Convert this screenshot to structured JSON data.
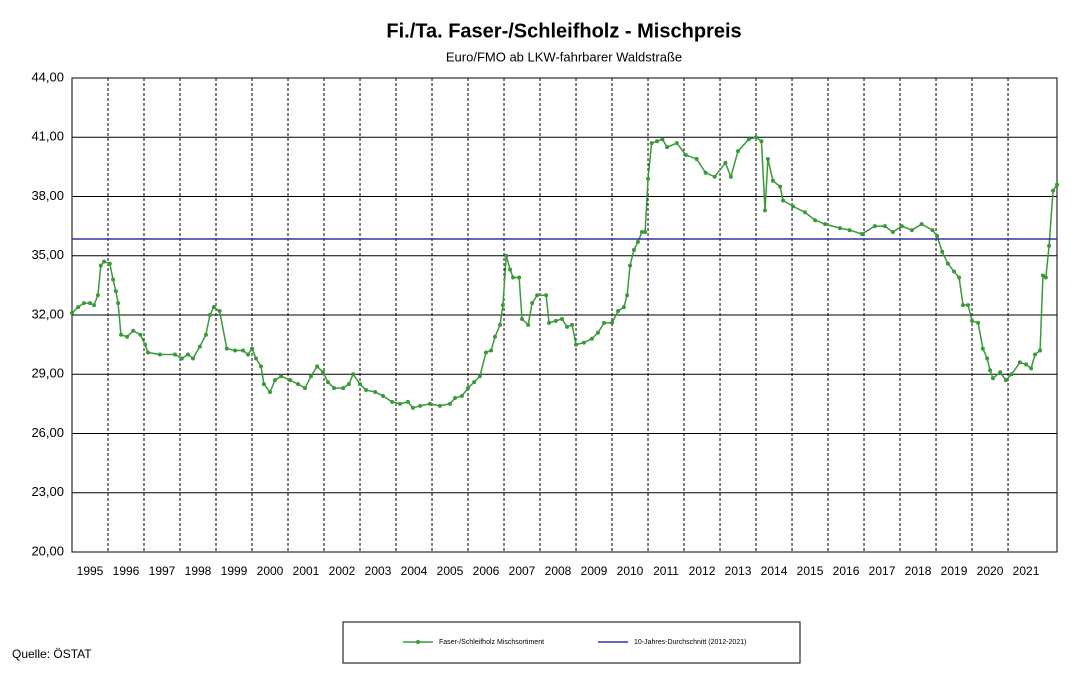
{
  "chart_data": {
    "type": "line",
    "title": "Fi./Ta. Faser-/Schleifholz - Mischpreis",
    "subtitle": "Euro/FMO ab LKW-fahrbarer Waldstraße",
    "source": "Quelle: ÖSTAT",
    "xlim": [
      1995,
      2022.36
    ],
    "ylim": [
      20,
      44
    ],
    "grid": true,
    "legend": "bottom",
    "yticks": [
      {
        "value": 20,
        "label": "20,00"
      },
      {
        "value": 23,
        "label": "23,00"
      },
      {
        "value": 26,
        "label": "26,00"
      },
      {
        "value": 29,
        "label": "29,00"
      },
      {
        "value": 32,
        "label": "32,00"
      },
      {
        "value": 35,
        "label": "35,00"
      },
      {
        "value": 38,
        "label": "38,00"
      },
      {
        "value": 41,
        "label": "41,00"
      },
      {
        "value": 44,
        "label": "44,00"
      }
    ],
    "xticks": [
      1995,
      1996,
      1997,
      1998,
      1999,
      2000,
      2001,
      2002,
      2003,
      2004,
      2005,
      2006,
      2007,
      2008,
      2009,
      2010,
      2011,
      2012,
      2013,
      2014,
      2015,
      2016,
      2017,
      2018,
      2019,
      2020,
      2021
    ],
    "series": [
      {
        "name": "Faser-/Schleifholz Mischsortiment",
        "color": "#3a9a3a",
        "marker": true,
        "x": [
          1995.0,
          1995.17,
          1995.33,
          1995.5,
          1995.61,
          1995.72,
          1995.8,
          1995.89,
          1996.05,
          1996.14,
          1996.22,
          1996.28,
          1996.36,
          1996.53,
          1996.7,
          1996.9,
          1997.03,
          1997.11,
          1997.44,
          1997.86,
          1998.05,
          1998.22,
          1998.36,
          1998.55,
          1998.72,
          1998.83,
          1998.94,
          1999.1,
          1999.3,
          1999.53,
          1999.75,
          1999.89,
          2000.0,
          2000.11,
          2000.25,
          2000.33,
          2000.5,
          2000.64,
          2000.81,
          2001.06,
          2001.28,
          2001.47,
          2001.64,
          2001.81,
          2001.97,
          2002.11,
          2002.28,
          2002.53,
          2002.69,
          2002.81,
          2003.0,
          2003.17,
          2003.42,
          2003.64,
          2003.89,
          2004.11,
          2004.33,
          2004.47,
          2004.67,
          2004.94,
          2005.22,
          2005.5,
          2005.64,
          2005.83,
          2006.0,
          2006.17,
          2006.33,
          2006.5,
          2006.64,
          2006.75,
          2006.89,
          2006.97,
          2007.06,
          2007.17,
          2007.25,
          2007.42,
          2007.5,
          2007.67,
          2007.78,
          2007.92,
          2008.17,
          2008.25,
          2008.44,
          2008.61,
          2008.75,
          2008.89,
          2009.0,
          2009.22,
          2009.44,
          2009.61,
          2009.78,
          2010.0,
          2010.17,
          2010.33,
          2010.42,
          2010.5,
          2010.61,
          2010.72,
          2010.83,
          2010.92,
          2011.0,
          2011.1,
          2011.25,
          2011.4,
          2011.53,
          2011.8,
          2012.05,
          2012.35,
          2012.6,
          2012.85,
          2013.15,
          2013.3,
          2013.5,
          2013.8,
          2014.0,
          2014.15,
          2014.25,
          2014.33,
          2014.47,
          2014.67,
          2014.75,
          2015.03,
          2015.36,
          2015.64,
          2015.92,
          2016.33,
          2016.6,
          2016.94,
          2017.3,
          2017.58,
          2017.8,
          2018.05,
          2018.33,
          2018.6,
          2018.9,
          2019.03,
          2019.17,
          2019.33,
          2019.5,
          2019.64,
          2019.75,
          2019.89,
          2020.0,
          2020.17,
          2020.3,
          2020.42,
          2020.5,
          2020.58,
          2020.78,
          2020.94,
          2021.1,
          2021.33,
          2021.5,
          2021.64,
          2021.75,
          2021.89,
          2021.97,
          2022.05,
          2022.14,
          2022.25,
          2022.36
        ],
        "values": [
          32.1,
          32.4,
          32.6,
          32.6,
          32.5,
          33.0,
          34.5,
          34.7,
          34.6,
          33.8,
          33.2,
          32.6,
          31.0,
          30.9,
          31.2,
          31.0,
          30.5,
          30.1,
          30.0,
          30.0,
          29.8,
          30.0,
          29.8,
          30.4,
          31.0,
          32.0,
          32.4,
          32.2,
          30.3,
          30.2,
          30.2,
          30.0,
          30.3,
          29.8,
          29.4,
          28.5,
          28.1,
          28.7,
          28.9,
          28.7,
          28.5,
          28.3,
          28.9,
          29.4,
          29.1,
          28.6,
          28.3,
          28.3,
          28.5,
          29.0,
          28.5,
          28.2,
          28.1,
          27.9,
          27.6,
          27.5,
          27.6,
          27.3,
          27.4,
          27.5,
          27.4,
          27.5,
          27.8,
          27.9,
          28.3,
          28.6,
          28.9,
          30.1,
          30.2,
          30.9,
          31.5,
          32.5,
          35.0,
          34.3,
          33.9,
          33.9,
          31.8,
          31.5,
          32.6,
          33.0,
          33.0,
          31.6,
          31.7,
          31.8,
          31.4,
          31.5,
          30.5,
          30.6,
          30.8,
          31.1,
          31.6,
          31.6,
          32.2,
          32.4,
          33.0,
          34.5,
          35.3,
          35.7,
          36.2,
          36.2,
          38.9,
          40.7,
          40.8,
          40.9,
          40.5,
          40.7,
          40.1,
          39.9,
          39.2,
          39.0,
          39.7,
          39.0,
          40.3,
          40.9,
          41.0,
          40.8,
          37.3,
          39.9,
          38.8,
          38.5,
          37.8,
          37.5,
          37.2,
          36.8,
          36.6,
          36.4,
          36.3,
          36.1,
          36.5,
          36.5,
          36.2,
          36.5,
          36.3,
          36.6,
          36.3,
          36.0,
          35.2,
          34.6,
          34.2,
          33.9,
          32.5,
          32.5,
          31.7,
          31.6,
          30.3,
          29.8,
          29.2,
          28.8,
          29.1,
          28.7,
          29.0,
          29.6,
          29.5,
          29.3,
          30.0,
          30.2,
          34.0,
          33.9,
          35.5,
          38.3,
          38.6
        ]
      },
      {
        "name": "10-Jahres-Durchschnitt (2012-2021)",
        "color": "#3333aa",
        "marker": false,
        "x": [
          1995,
          2022.36
        ],
        "values": [
          35.85,
          35.85
        ]
      }
    ]
  }
}
